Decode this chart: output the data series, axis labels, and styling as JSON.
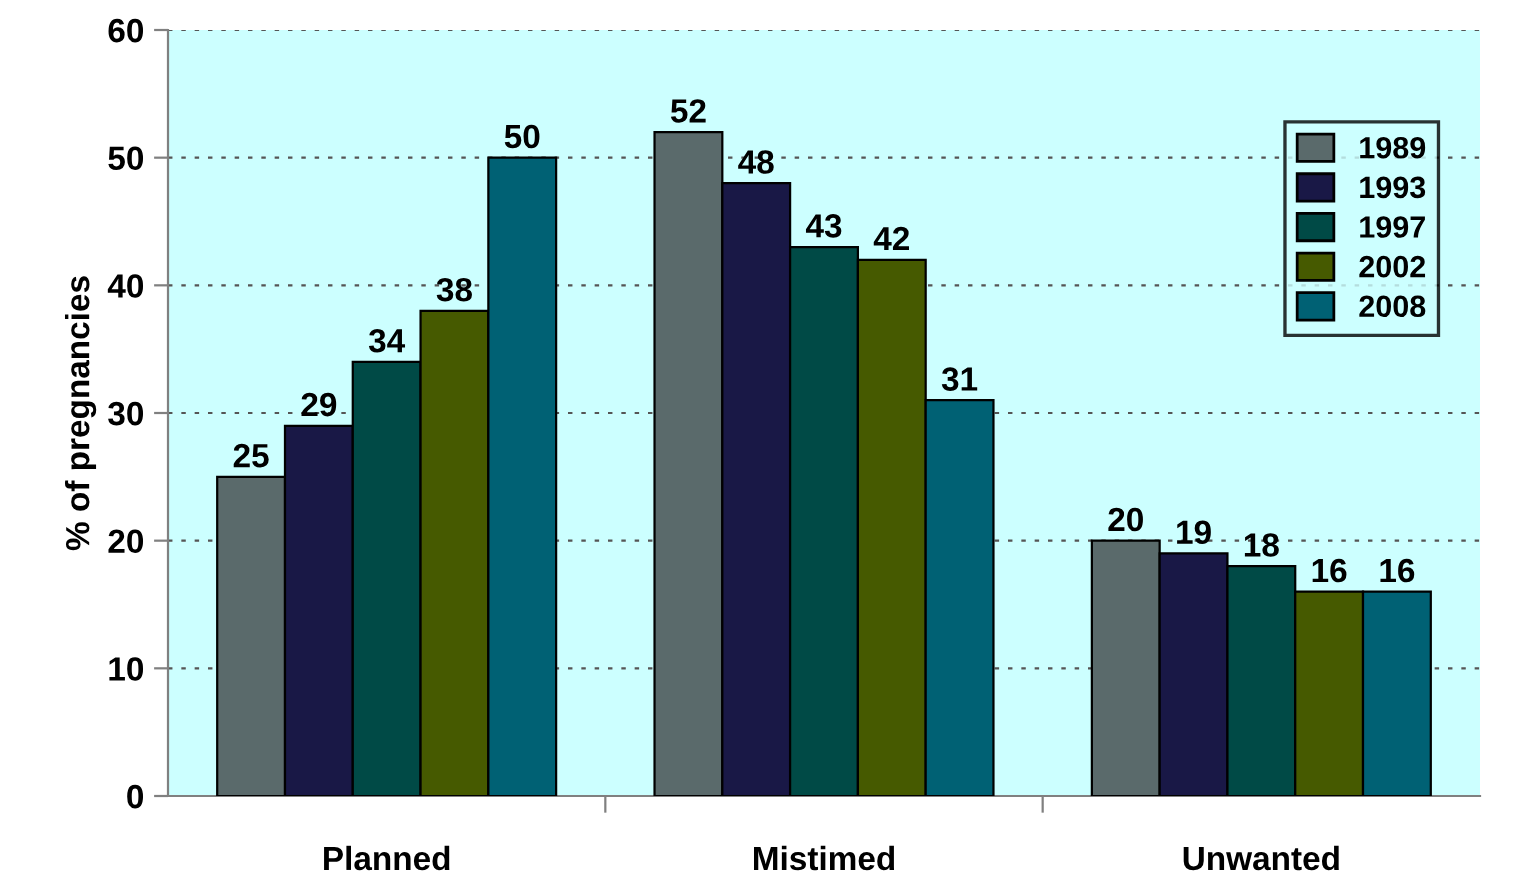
{
  "chart_data": {
    "type": "bar",
    "ylabel": "% of pregnancies",
    "categories": [
      "Planned",
      "Mistimed",
      "Unwanted"
    ],
    "series": [
      {
        "name": "1989",
        "color": "#5a6a6b",
        "values": [
          25,
          52,
          20
        ]
      },
      {
        "name": "1993",
        "color": "#191846",
        "values": [
          29,
          48,
          19
        ]
      },
      {
        "name": "1997",
        "color": "#004a46",
        "values": [
          34,
          43,
          18
        ]
      },
      {
        "name": "2002",
        "color": "#465a00",
        "values": [
          38,
          42,
          16
        ]
      },
      {
        "name": "2008",
        "color": "#006174",
        "values": [
          50,
          31,
          16
        ]
      }
    ],
    "ylim": [
      0,
      60
    ],
    "yticks": [
      0,
      10,
      20,
      30,
      40,
      50,
      60
    ],
    "grid": "y",
    "legend": "top right",
    "data_labels": true
  }
}
